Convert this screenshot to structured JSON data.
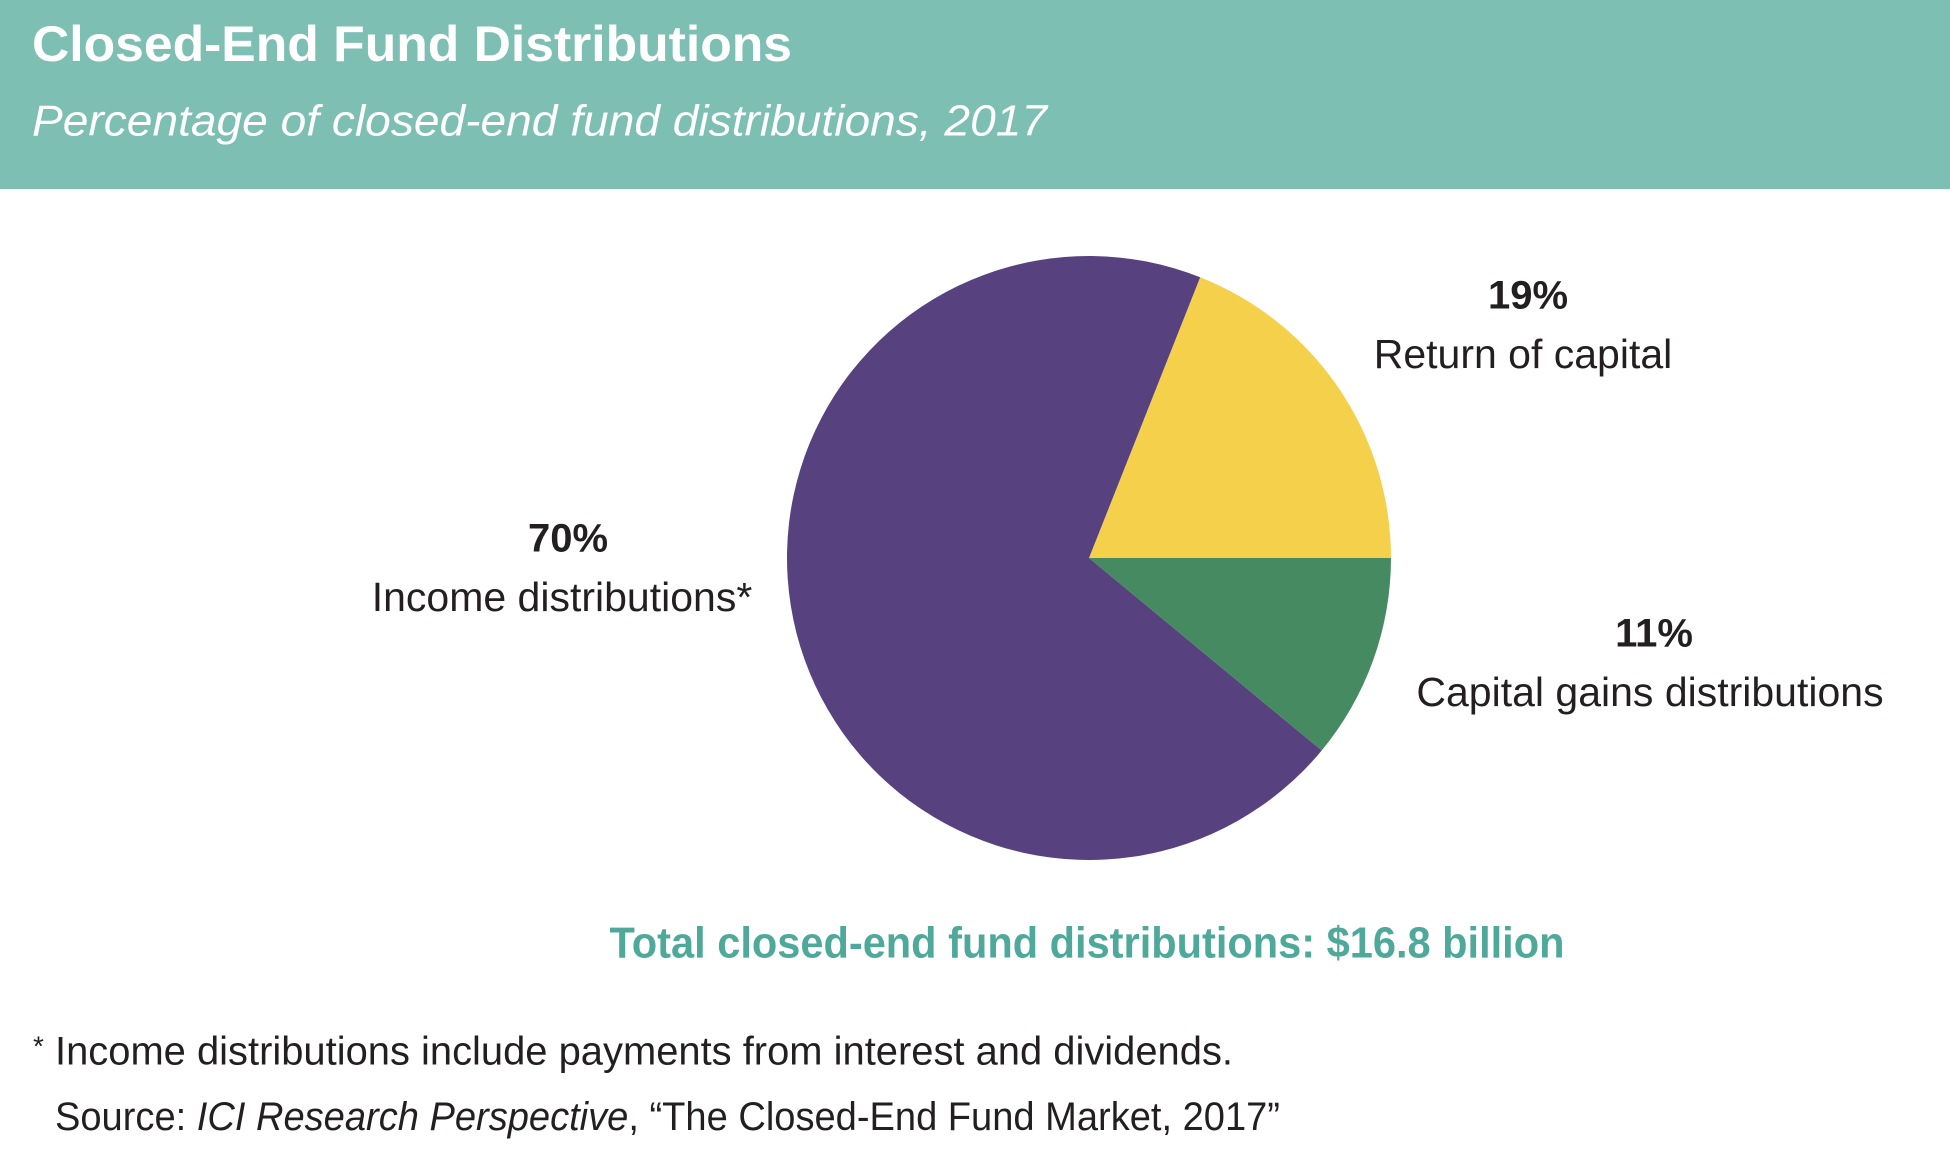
{
  "chart_data": {
    "type": "pie",
    "title": "Closed-End Fund Distributions",
    "subtitle": "Percentage of closed-end fund distributions, 2017",
    "categories": [
      "Return of capital",
      "Income distributions*",
      "Capital gains distributions"
    ],
    "values": [
      19,
      70,
      11
    ],
    "value_labels": [
      "19%",
      "70%",
      "11%"
    ],
    "colors": [
      "#f5d04a",
      "#57417f",
      "#468a61"
    ],
    "total_note": "Total closed-end fund distributions: $16.8 billion",
    "footnote": {
      "marker": "*",
      "text": "Income distributions include payments from interest and dividends."
    },
    "source": {
      "prefix": "Source:",
      "publication": "ICI Research Perspective",
      "rest": ", “The Closed-End Fund Market, 2017”"
    }
  }
}
